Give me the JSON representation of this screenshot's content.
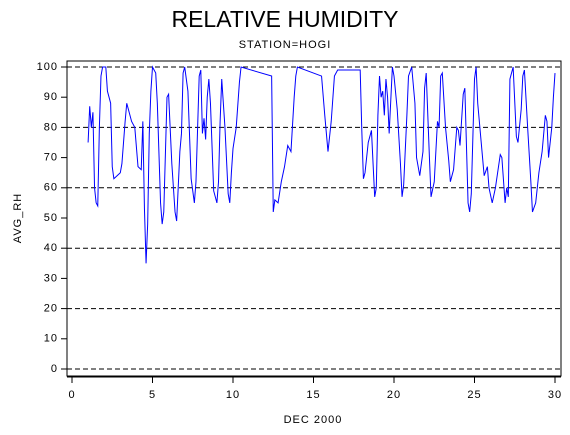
{
  "chart_data": {
    "type": "line",
    "title": "RELATIVE HUMIDITY",
    "subtitle": "STATION=HOGI",
    "x_label": "DEC 2000",
    "y_label": "AVG_RH",
    "xlim": [
      0,
      30
    ],
    "xticks": [
      0,
      5,
      10,
      15,
      20,
      25,
      30
    ],
    "ylim": [
      0,
      100
    ],
    "yticks": [
      0,
      10,
      20,
      30,
      40,
      50,
      60,
      70,
      80,
      90,
      100
    ],
    "grid_lines": [
      0,
      20,
      40,
      60,
      80,
      100
    ],
    "series": [
      {
        "color": "#0000ff",
        "x": [
          1.0,
          1.1,
          1.2,
          1.3,
          1.4,
          1.5,
          1.6,
          1.7,
          1.8,
          1.9,
          2.1,
          2.2,
          2.4,
          2.5,
          2.6,
          2.8,
          3.0,
          3.1,
          3.3,
          3.4,
          3.5,
          3.7,
          3.9,
          4.1,
          4.3,
          4.4,
          4.5,
          4.6,
          4.7,
          4.8,
          4.9,
          5.0,
          5.2,
          5.3,
          5.5,
          5.6,
          5.7,
          5.9,
          6.0,
          6.2,
          6.4,
          6.5,
          6.7,
          6.8,
          6.9,
          7.0,
          7.2,
          7.4,
          7.6,
          7.7,
          7.9,
          8.0,
          8.1,
          8.2,
          8.3,
          8.4,
          8.5,
          8.6,
          8.8,
          9.0,
          9.1,
          9.2,
          9.3,
          9.5,
          9.7,
          9.8,
          9.9,
          10.0,
          10.2,
          10.4,
          10.5,
          12.4,
          12.5,
          12.6,
          12.8,
          13.0,
          13.2,
          13.4,
          13.6,
          13.8,
          13.9,
          14.0,
          15.5,
          15.7,
          15.9,
          16.1,
          16.3,
          16.5,
          17.9,
          18.0,
          18.1,
          18.2,
          18.4,
          18.6,
          18.8,
          18.9,
          19.0,
          19.1,
          19.2,
          19.3,
          19.4,
          19.5,
          19.6,
          19.7,
          19.9,
          20.0,
          20.2,
          20.4,
          20.5,
          20.6,
          20.8,
          20.9,
          21.1,
          21.3,
          21.4,
          21.6,
          21.8,
          21.9,
          22.0,
          22.2,
          22.3,
          22.5,
          22.7,
          22.8,
          22.9,
          23.0,
          23.2,
          23.4,
          23.5,
          23.7,
          23.9,
          24.0,
          24.1,
          24.3,
          24.4,
          24.6,
          24.7,
          24.8,
          25.0,
          25.1,
          25.2,
          25.4,
          25.6,
          25.8,
          25.9,
          26.1,
          26.3,
          26.6,
          26.7,
          26.9,
          27.0,
          27.1,
          27.2,
          27.4,
          27.6,
          27.7,
          27.9,
          28.0,
          28.1,
          28.3,
          28.5,
          28.6,
          28.8,
          29.0,
          29.2,
          29.4,
          29.5,
          29.6,
          29.8,
          29.9,
          30.0
        ],
        "values": [
          75,
          87,
          80,
          85,
          60,
          55,
          54,
          80,
          97,
          100,
          100,
          92,
          88,
          67,
          63,
          64,
          65,
          68,
          82,
          88,
          86,
          82,
          80,
          67,
          66,
          82,
          53,
          35,
          48,
          78,
          92,
          100,
          98,
          88,
          55,
          48,
          52,
          90,
          91,
          68,
          52,
          49,
          72,
          78,
          98,
          100,
          92,
          63,
          55,
          62,
          97,
          99,
          78,
          83,
          76,
          90,
          96,
          88,
          59,
          55,
          62,
          82,
          96,
          80,
          58,
          55,
          65,
          73,
          80,
          95,
          100,
          97,
          52,
          56,
          55,
          62,
          67,
          74,
          72,
          90,
          97,
          100,
          97,
          84,
          72,
          82,
          97,
          99,
          99,
          79,
          63,
          65,
          75,
          79,
          57,
          60,
          84,
          97,
          90,
          92,
          84,
          96,
          90,
          78,
          100,
          97,
          86,
          68,
          57,
          61,
          84,
          97,
          100,
          88,
          70,
          64,
          72,
          93,
          98,
          70,
          57,
          62,
          82,
          80,
          97,
          98,
          80,
          69,
          62,
          66,
          80,
          79,
          74,
          91,
          93,
          55,
          52,
          58,
          96,
          100,
          88,
          76,
          64,
          67,
          60,
          55,
          60,
          71,
          70,
          55,
          60,
          57,
          96,
          100,
          77,
          75,
          86,
          97,
          99,
          80,
          62,
          52,
          55,
          65,
          72,
          84,
          82,
          70,
          80,
          90,
          98
        ]
      }
    ]
  }
}
